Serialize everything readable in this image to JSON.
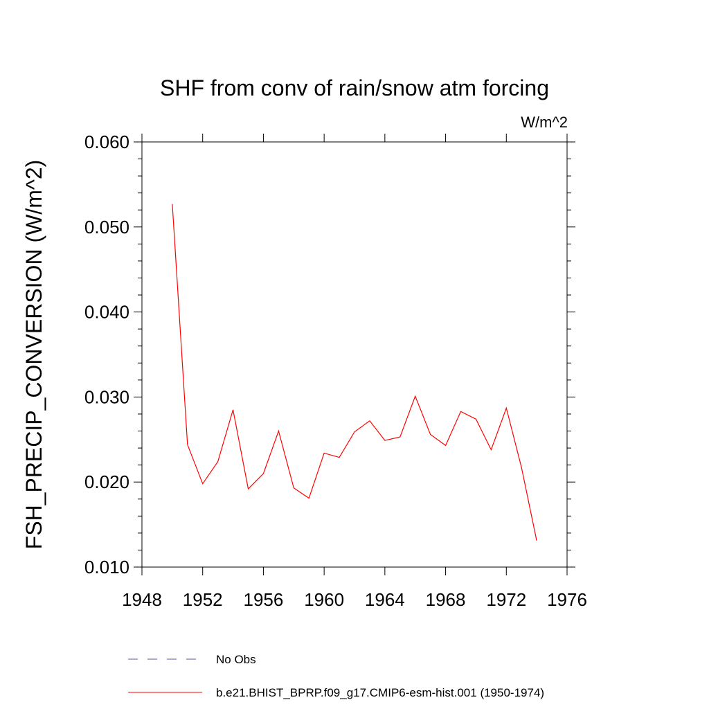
{
  "chart_data": {
    "type": "line",
    "title": "SHF from conv of rain/snow atm forcing",
    "units_label": "W/m^2",
    "xlabel": "",
    "ylabel": "FSH_PRECIP_CONVERSION  (W/m^2)",
    "xlim": [
      1948,
      1976
    ],
    "ylim": [
      0.01,
      0.06
    ],
    "x_ticks": [
      1948,
      1952,
      1956,
      1960,
      1964,
      1968,
      1972,
      1976
    ],
    "y_ticks": [
      0.01,
      0.02,
      0.03,
      0.04,
      0.05,
      0.06
    ],
    "x_tick_labels": [
      "1948",
      "1952",
      "1956",
      "1960",
      "1964",
      "1968",
      "1972",
      "1976"
    ],
    "y_tick_labels": [
      "0.010",
      "0.020",
      "0.030",
      "0.040",
      "0.050",
      "0.060"
    ],
    "grid": false,
    "legend_position": "bottom",
    "series": [
      {
        "name": "No Obs",
        "color": "#5a50a0",
        "dash": "dashed",
        "x": [],
        "y": []
      },
      {
        "name": "b.e21.BHIST_BPRP.f09_g17.CMIP6-esm-hist.001 (1950-1974)",
        "color": "#ff0000",
        "dash": "solid",
        "x": [
          1950,
          1951,
          1952,
          1953,
          1954,
          1955,
          1956,
          1957,
          1958,
          1959,
          1960,
          1961,
          1962,
          1963,
          1964,
          1965,
          1966,
          1967,
          1968,
          1969,
          1970,
          1971,
          1972,
          1973,
          1974
        ],
        "y": [
          0.0527,
          0.0244,
          0.0198,
          0.0224,
          0.0285,
          0.0192,
          0.021,
          0.026,
          0.0193,
          0.0181,
          0.0234,
          0.0229,
          0.0259,
          0.0272,
          0.0249,
          0.0253,
          0.0301,
          0.0256,
          0.0243,
          0.0283,
          0.0274,
          0.0238,
          0.0287,
          0.0217,
          0.0131
        ]
      }
    ]
  }
}
